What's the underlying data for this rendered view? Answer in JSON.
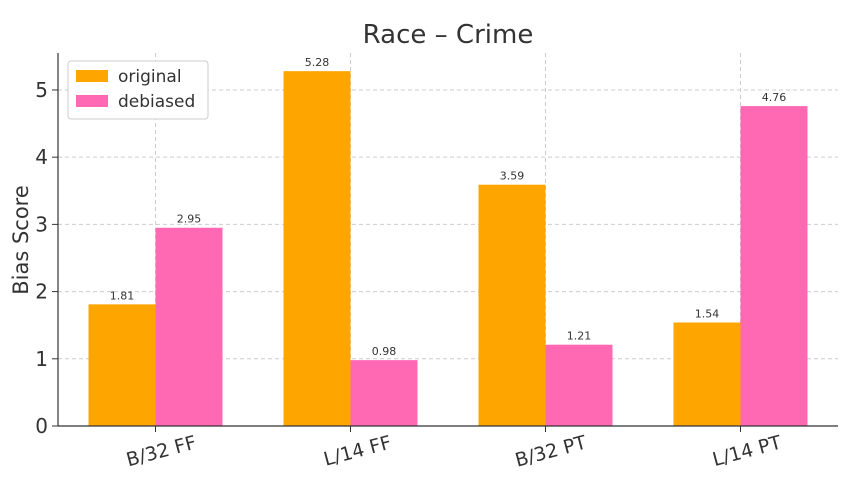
{
  "chart_data": {
    "type": "bar",
    "title": "Race – Crime",
    "xlabel": "",
    "ylabel": "Bias Score",
    "categories": [
      "B/32 FF",
      "L/14 FF",
      "B/32 PT",
      "L/14 PT"
    ],
    "series": [
      {
        "name": "original",
        "color": "#FFA500",
        "values": [
          1.81,
          5.28,
          3.59,
          1.54
        ]
      },
      {
        "name": "debiased",
        "color": "#FF69B4",
        "values": [
          2.95,
          0.98,
          1.21,
          4.76
        ]
      }
    ],
    "ylim": [
      0,
      5.55
    ],
    "yticks": [
      "0",
      "1",
      "2",
      "3",
      "4",
      "5"
    ],
    "grid": true,
    "legend_position": "top-left",
    "x_tick_rotation": "slanted"
  }
}
